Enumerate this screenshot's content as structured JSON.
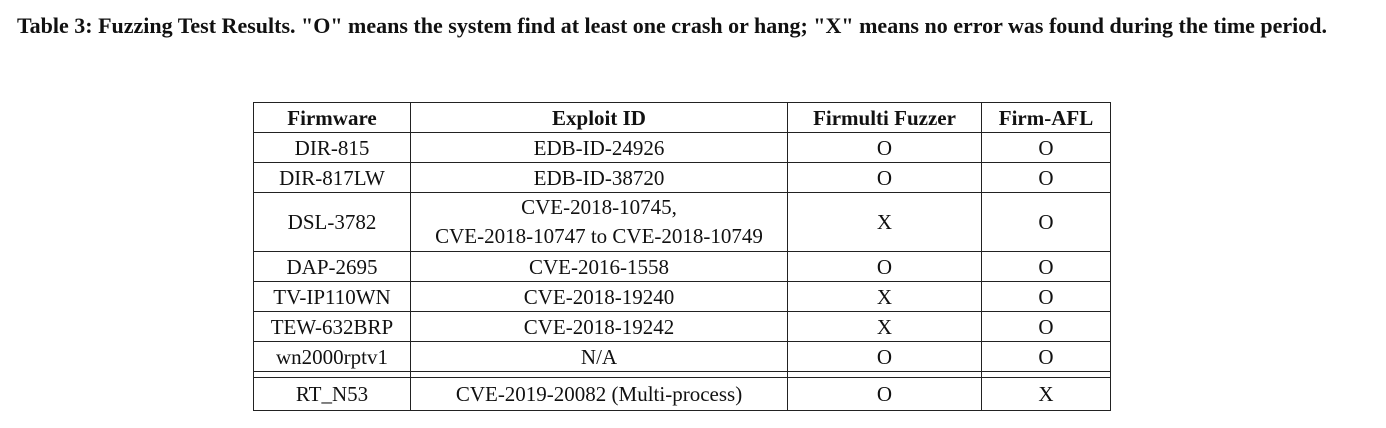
{
  "caption": "Table 3: Fuzzing Test Results. \"O\" means the system find at least one crash or hang; \"X\" means no error was found during the time period.",
  "table": {
    "headers": [
      "Firmware",
      "Exploit ID",
      "Firmulti Fuzzer",
      "Firm-AFL"
    ],
    "rows": [
      {
        "firmware": "DIR-815",
        "exploit": "EDB-ID-24926",
        "firmulti": "O",
        "firmafl": "O"
      },
      {
        "firmware": "DIR-817LW",
        "exploit": "EDB-ID-38720",
        "firmulti": "O",
        "firmafl": "O"
      },
      {
        "firmware": "DSL-3782",
        "exploit_line1": "CVE-2018-10745,",
        "exploit_line2": "CVE-2018-10747 to CVE-2018-10749",
        "firmulti": "X",
        "firmafl": "O"
      },
      {
        "firmware": "DAP-2695",
        "exploit": "CVE-2016-1558",
        "firmulti": "O",
        "firmafl": "O"
      },
      {
        "firmware": "TV-IP110WN",
        "exploit": "CVE-2018-19240",
        "firmulti": "X",
        "firmafl": "O"
      },
      {
        "firmware": "TEW-632BRP",
        "exploit": "CVE-2018-19242",
        "firmulti": "X",
        "firmafl": "O"
      },
      {
        "firmware": "wn2000rptv1",
        "exploit": "N/A",
        "firmulti": "O",
        "firmafl": "O"
      },
      {
        "firmware": "RT_N53",
        "exploit": "CVE-2019-20082 (Multi-process)",
        "firmulti": "O",
        "firmafl": "X"
      }
    ]
  }
}
